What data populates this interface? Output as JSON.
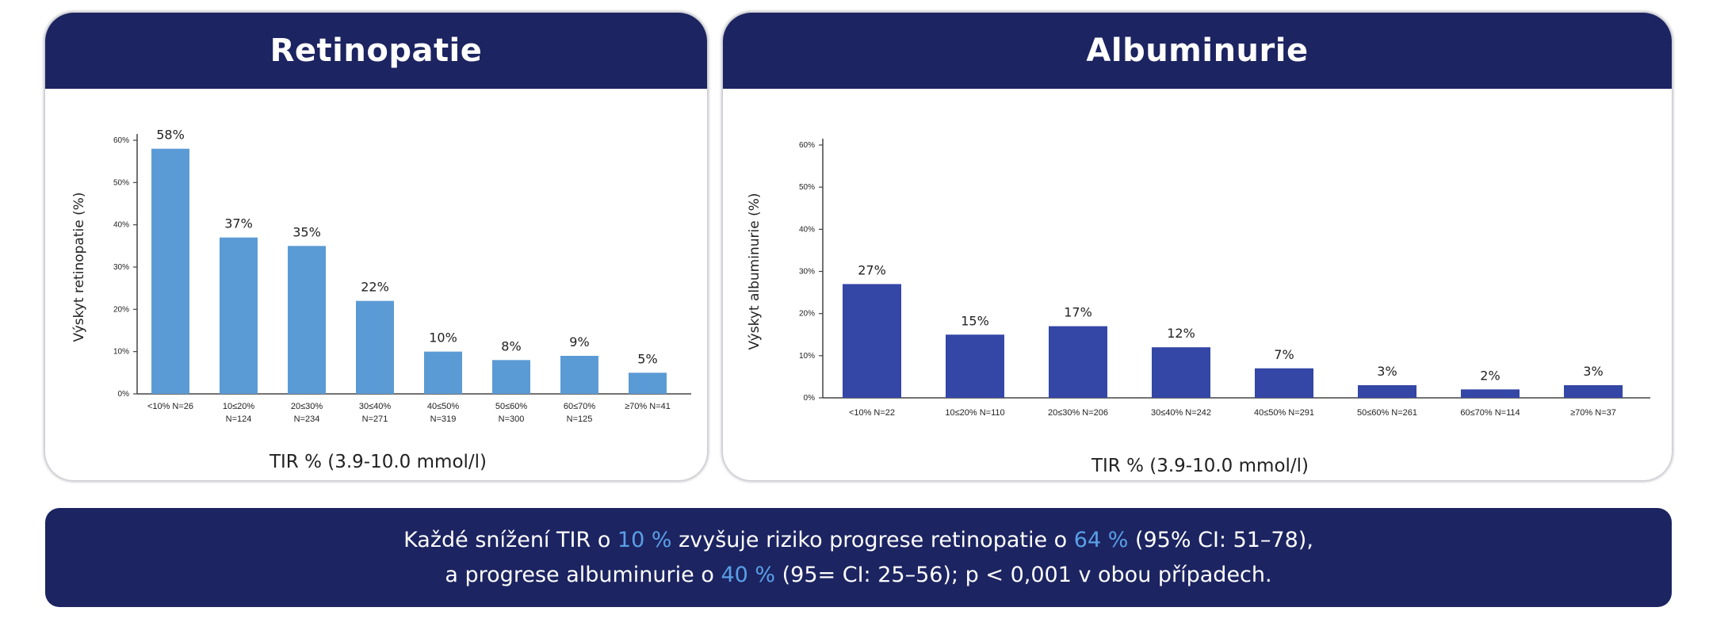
{
  "panels": [
    {
      "title": "Retinopatie",
      "ylabel": "Výskyt retinopatie (%)",
      "xlabel": "TIR % (3.9-10.0 mmol/l)"
    },
    {
      "title": "Albuminurie",
      "ylabel": "Výskyt albuminurie (%)",
      "xlabel": "TIR % (3.9-10.0 mmol/l)"
    }
  ],
  "chart_data": [
    {
      "type": "bar",
      "title": "Retinopatie",
      "ylabel": "Výskyt retinopatie (%)",
      "xlabel": "TIR % (3.9-10.0 mmol/l)",
      "categories": [
        [
          "<10% N=26"
        ],
        [
          "10≤20%",
          "N=124"
        ],
        [
          "20≤30%",
          "N=234"
        ],
        [
          "30≤40%",
          "N=271"
        ],
        [
          "40≤50%",
          "N=319"
        ],
        [
          "50≤60%",
          "N=300"
        ],
        [
          "60≤70%",
          "N=125"
        ],
        [
          "≥70% N=41"
        ]
      ],
      "values": [
        58,
        37,
        35,
        22,
        10,
        8,
        9,
        5
      ],
      "value_labels": [
        "58%",
        "37%",
        "35%",
        "22%",
        "10%",
        "8%",
        "9%",
        "5%"
      ],
      "yticks": [
        "0%",
        "10%",
        "20%",
        "30%",
        "40%",
        "50%",
        "60%"
      ],
      "ylim": [
        0,
        60
      ],
      "color": "#5b9bd5",
      "grid": false
    },
    {
      "type": "bar",
      "title": "Albuminurie",
      "ylabel": "Výskyt albuminurie (%)",
      "xlabel": "TIR % (3.9-10.0 mmol/l)",
      "categories": [
        [
          "<10% N=22"
        ],
        [
          "10≤20% N=110"
        ],
        [
          "20≤30% N=206"
        ],
        [
          "30≤40% N=242"
        ],
        [
          "40≤50% N=291"
        ],
        [
          "50≤60% N=261"
        ],
        [
          "60≤70% N=114"
        ],
        [
          "≥70% N=37"
        ]
      ],
      "values": [
        27,
        15,
        17,
        12,
        7,
        3,
        2,
        3
      ],
      "value_labels": [
        "27%",
        "15%",
        "17%",
        "12%",
        "7%",
        "3%",
        "2%",
        "3%"
      ],
      "yticks": [
        "0%",
        "10%",
        "20%",
        "30%",
        "40%",
        "50%",
        "60%"
      ],
      "ylim": [
        0,
        60
      ],
      "color": "#3446a6",
      "grid": false
    }
  ],
  "footer": {
    "line1": {
      "part1": "Každé snížení TIR o ",
      "hl1": "10 %",
      "part2": " zvyšuje riziko progrese retinopatie o ",
      "hl2": "64 %",
      "part3": " (95% CI: 51–78),"
    },
    "line2": {
      "part1": "a progrese albuminurie o ",
      "hl1": "40 %",
      "part2": " (95= CI: 25–56); p < 0,001 v obou případech."
    },
    "highlight_color": "#5aa0e6",
    "background_color": "#1c2461"
  }
}
